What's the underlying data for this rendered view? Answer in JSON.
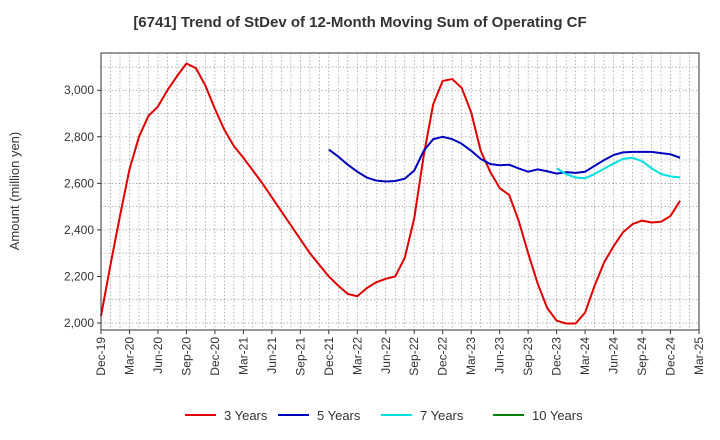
{
  "chart_data": {
    "type": "line",
    "title": "[6741]  Trend of StDev of 12-Month Moving Sum of Operating CF",
    "xlabel": "",
    "ylabel": "Amount (million yen)",
    "ylim": [
      1970,
      3160
    ],
    "yticks": [
      2000,
      2200,
      2400,
      2600,
      2800,
      3000
    ],
    "ytick_labels": [
      "2,000",
      "2,200",
      "2,400",
      "2,600",
      "2,800",
      "3,000"
    ],
    "x_start": "Dec-19",
    "x_range_months": [
      0,
      63
    ],
    "xtick_labels": [
      "Dec-19",
      "Mar-20",
      "Jun-20",
      "Sep-20",
      "Dec-20",
      "Mar-21",
      "Jun-21",
      "Sep-21",
      "Dec-21",
      "Mar-22",
      "Jun-22",
      "Sep-22",
      "Dec-22",
      "Mar-23",
      "Jun-23",
      "Sep-23",
      "Dec-23",
      "Mar-24",
      "Jun-24",
      "Sep-24",
      "Dec-24",
      "Mar-25"
    ],
    "grid": true,
    "legend_position": "bottom",
    "series": [
      {
        "name": "3 Years",
        "color": "#e00000",
        "start_month": 0,
        "values": [
          2030,
          2250,
          2460,
          2660,
          2800,
          2890,
          2930,
          3000,
          3060,
          3115,
          3095,
          3020,
          2920,
          2830,
          2760,
          2710,
          2655,
          2600,
          2540,
          2480,
          2420,
          2360,
          2300,
          2250,
          2200,
          2160,
          2125,
          2115,
          2150,
          2175,
          2190,
          2200,
          2280,
          2450,
          2720,
          2940,
          3040,
          3048,
          3010,
          2905,
          2740,
          2650,
          2580,
          2550,
          2440,
          2300,
          2170,
          2065,
          2010,
          1998,
          1998,
          2045,
          2160,
          2260,
          2330,
          2390,
          2425,
          2440,
          2432,
          2435,
          2460,
          2525
        ]
      },
      {
        "name": "5 Years",
        "color": "#0000c0",
        "start_month": 24,
        "values": [
          2745,
          2715,
          2680,
          2650,
          2625,
          2612,
          2608,
          2610,
          2620,
          2655,
          2740,
          2790,
          2800,
          2790,
          2770,
          2740,
          2705,
          2683,
          2678,
          2680,
          2664,
          2650,
          2660,
          2652,
          2642,
          2648,
          2645,
          2650,
          2675,
          2700,
          2722,
          2733,
          2735,
          2735,
          2735,
          2730,
          2725,
          2710
        ]
      },
      {
        "name": "7 Years",
        "color": "#00e0e0",
        "start_month": 48,
        "values": [
          2665,
          2640,
          2625,
          2622,
          2640,
          2663,
          2685,
          2705,
          2710,
          2695,
          2665,
          2640,
          2630,
          2625
        ]
      },
      {
        "name": "10 Years",
        "color": "#008000",
        "start_month": 0,
        "values": []
      }
    ]
  }
}
